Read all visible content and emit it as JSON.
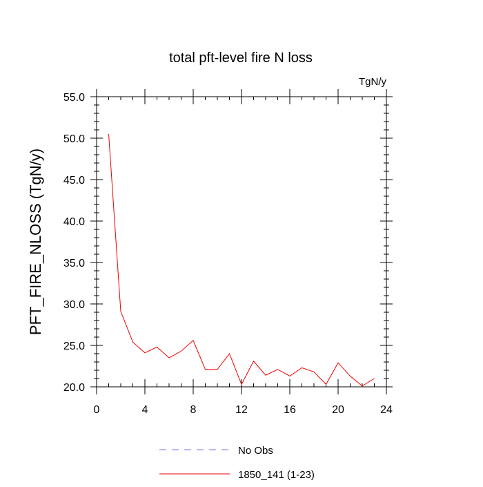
{
  "chart_data": {
    "type": "line",
    "title": "total pft-level fire N loss",
    "units_label": "TgN/y",
    "xlabel": "",
    "ylabel": "PFT_FIRE_NLOSS  (TgN/y)",
    "xlim": [
      0,
      24
    ],
    "ylim": [
      20,
      55
    ],
    "x_ticks": [
      0,
      4,
      8,
      12,
      16,
      20,
      24
    ],
    "x_tick_labels": [
      "0",
      "4",
      "8",
      "12",
      "16",
      "20",
      "24"
    ],
    "y_ticks": [
      20,
      25,
      30,
      35,
      40,
      45,
      50,
      55
    ],
    "y_tick_labels": [
      "20.0",
      "25.0",
      "30.0",
      "35.0",
      "40.0",
      "45.0",
      "50.0",
      "55.0"
    ],
    "grid": false,
    "legend_position": "bottom",
    "series": [
      {
        "name": "No Obs",
        "color": "#7777ee",
        "dash": true,
        "x": [],
        "values": []
      },
      {
        "name": "1850_141 (1-23)",
        "color": "#ee0000",
        "dash": false,
        "x": [
          1,
          2,
          3,
          4,
          5,
          6,
          7,
          8,
          9,
          10,
          11,
          12,
          13,
          14,
          15,
          16,
          17,
          18,
          19,
          20,
          21,
          22,
          23
        ],
        "values": [
          50.5,
          29.1,
          25.4,
          24.1,
          24.8,
          23.5,
          24.3,
          25.6,
          22.1,
          22.1,
          24.0,
          20.3,
          23.1,
          21.4,
          22.1,
          21.3,
          22.3,
          21.8,
          20.3,
          22.9,
          21.3,
          20.1,
          21.0
        ]
      }
    ]
  }
}
